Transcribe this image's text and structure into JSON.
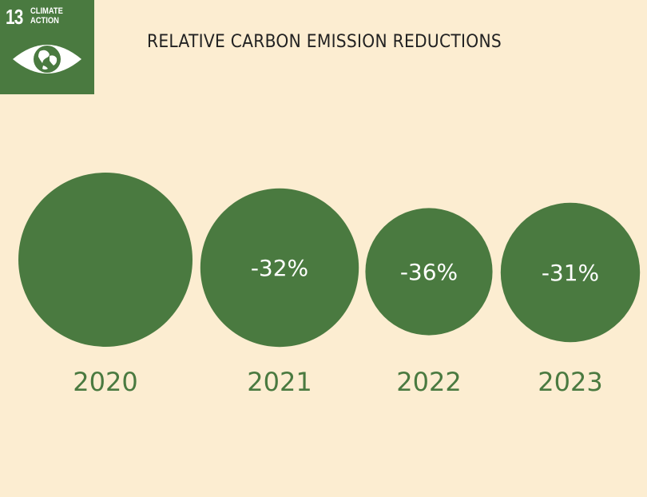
{
  "logo": {
    "number": "13",
    "line1": "CLIMATE",
    "line2": "ACTION",
    "icon": "eye-globe-icon"
  },
  "colors": {
    "background": "#fcedd1",
    "bubble": "#4a7a40",
    "year_label": "#4a7a40",
    "label_text": "#ffffff"
  },
  "chart_data": {
    "type": "scatter",
    "title": "RELATIVE CARBON EMISSION REDUCTIONS",
    "categories": [
      "2020",
      "2021",
      "2022",
      "2023"
    ],
    "values": [
      0,
      -32,
      -36,
      -31
    ],
    "data_labels": [
      "",
      "-32%",
      "-36%",
      "-31%"
    ],
    "unit": "% change in carbon emissions",
    "xlabel": "",
    "ylabel": "",
    "grid": false,
    "legend": "none"
  }
}
